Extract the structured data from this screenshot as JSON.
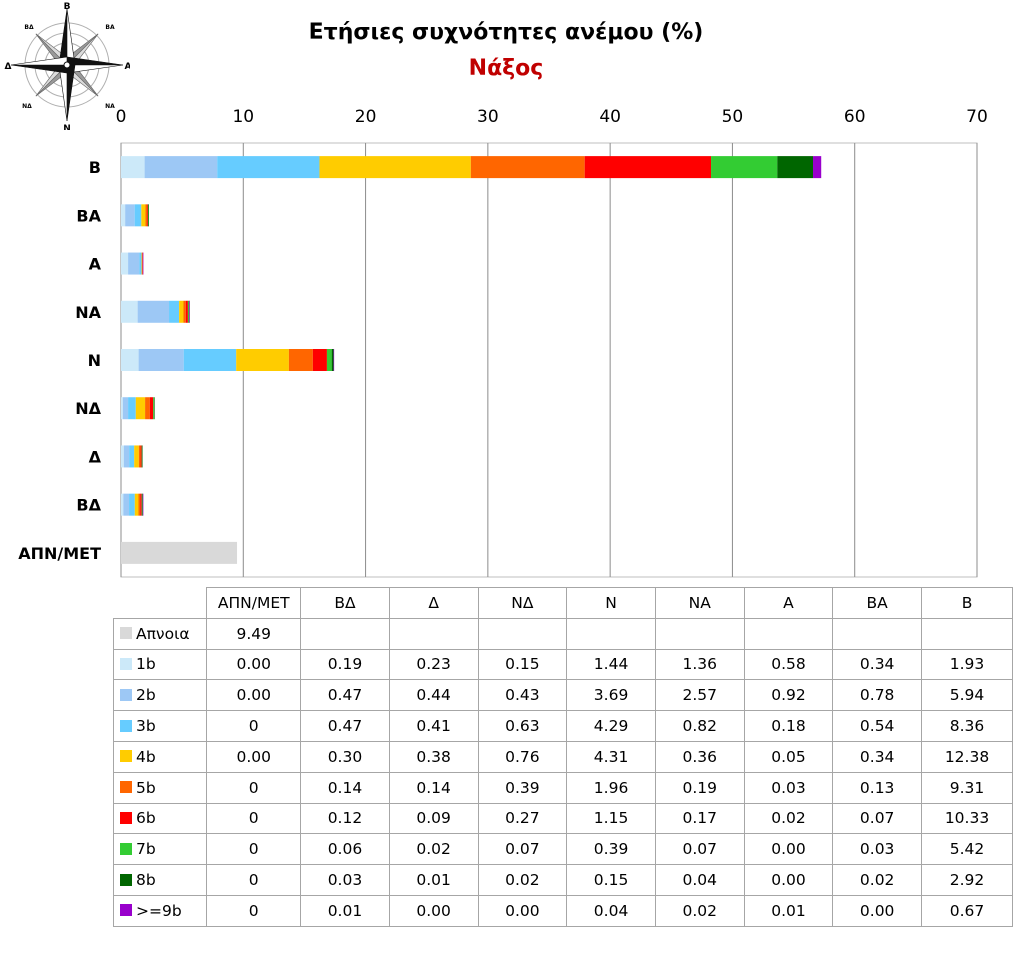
{
  "chart_data": {
    "type": "bar",
    "orientation": "horizontal",
    "stacked": true,
    "title": "Ετήσιες συχνότητες ανέμου (%)",
    "subtitle": "Νάξος",
    "categories": [
      "Β",
      "ΒΑ",
      "Α",
      "ΝΑ",
      "Ν",
      "ΝΔ",
      "Δ",
      "ΒΔ",
      "ΑΠΝ/ΜΕΤ"
    ],
    "table_columns": [
      "ΑΠΝ/ΜΕΤ",
      "ΒΔ",
      "Δ",
      "ΝΔ",
      "Ν",
      "ΝΑ",
      "Α",
      "ΒΑ",
      "Β"
    ],
    "xlim": [
      0,
      70
    ],
    "x_ticks": [
      "0",
      "10",
      "20",
      "30",
      "40",
      "50",
      "60",
      "70"
    ],
    "x_axis_position": "top",
    "grid": true,
    "series": [
      {
        "name": "Απνοια",
        "color": "#d9d9d9",
        "values": {
          "ΑΠΝ/ΜΕΤ": 9.49
        },
        "display": [
          "9.49",
          "",
          "",
          "",
          "",
          "",
          "",
          "",
          ""
        ]
      },
      {
        "name": "1b",
        "color": "#cce9f9",
        "values": {
          "ΑΠΝ/ΜΕΤ": 0,
          "ΒΔ": 0.19,
          "Δ": 0.23,
          "ΝΔ": 0.15,
          "Ν": 1.44,
          "ΝΑ": 1.36,
          "Α": 0.58,
          "ΒΑ": 0.34,
          "Β": 1.93
        },
        "display": [
          "0.00",
          "0.19",
          "0.23",
          "0.15",
          "1.44",
          "1.36",
          "0.58",
          "0.34",
          "1.93"
        ]
      },
      {
        "name": "2b",
        "color": "#9dc8f5",
        "values": {
          "ΑΠΝ/ΜΕΤ": 0,
          "ΒΔ": 0.47,
          "Δ": 0.44,
          "ΝΔ": 0.43,
          "Ν": 3.69,
          "ΝΑ": 2.57,
          "Α": 0.92,
          "ΒΑ": 0.78,
          "Β": 5.94
        },
        "display": [
          "0.00",
          "0.47",
          "0.44",
          "0.43",
          "3.69",
          "2.57",
          "0.92",
          "0.78",
          "5.94"
        ]
      },
      {
        "name": "3b",
        "color": "#66ccff",
        "values": {
          "ΑΠΝ/ΜΕΤ": 0,
          "ΒΔ": 0.47,
          "Δ": 0.41,
          "ΝΔ": 0.63,
          "Ν": 4.29,
          "ΝΑ": 0.82,
          "Α": 0.18,
          "ΒΑ": 0.54,
          "Β": 8.36
        },
        "display": [
          "0",
          "0.47",
          "0.41",
          "0.63",
          "4.29",
          "0.82",
          "0.18",
          "0.54",
          "8.36"
        ]
      },
      {
        "name": "4b",
        "color": "#ffcc00",
        "values": {
          "ΑΠΝ/ΜΕΤ": 0,
          "ΒΔ": 0.3,
          "Δ": 0.38,
          "ΝΔ": 0.76,
          "Ν": 4.31,
          "ΝΑ": 0.36,
          "Α": 0.05,
          "ΒΑ": 0.34,
          "Β": 12.38
        },
        "display": [
          "0.00",
          "0.30",
          "0.38",
          "0.76",
          "4.31",
          "0.36",
          "0.05",
          "0.34",
          "12.38"
        ]
      },
      {
        "name": "5b",
        "color": "#ff6600",
        "values": {
          "ΑΠΝ/ΜΕΤ": 0,
          "ΒΔ": 0.14,
          "Δ": 0.14,
          "ΝΔ": 0.39,
          "Ν": 1.96,
          "ΝΑ": 0.19,
          "Α": 0.03,
          "ΒΑ": 0.13,
          "Β": 9.31
        },
        "display": [
          "0",
          "0.14",
          "0.14",
          "0.39",
          "1.96",
          "0.19",
          "0.03",
          "0.13",
          "9.31"
        ]
      },
      {
        "name": "6b",
        "color": "#ff0000",
        "values": {
          "ΑΠΝ/ΜΕΤ": 0,
          "ΒΔ": 0.12,
          "Δ": 0.09,
          "ΝΔ": 0.27,
          "Ν": 1.15,
          "ΝΑ": 0.17,
          "Α": 0.02,
          "ΒΑ": 0.07,
          "Β": 10.33
        },
        "display": [
          "0",
          "0.12",
          "0.09",
          "0.27",
          "1.15",
          "0.17",
          "0.02",
          "0.07",
          "10.33"
        ]
      },
      {
        "name": "7b",
        "color": "#33cc33",
        "values": {
          "ΑΠΝ/ΜΕΤ": 0,
          "ΒΔ": 0.06,
          "Δ": 0.02,
          "ΝΔ": 0.07,
          "Ν": 0.39,
          "ΝΑ": 0.07,
          "Α": 0.0,
          "ΒΑ": 0.03,
          "Β": 5.42
        },
        "display": [
          "0",
          "0.06",
          "0.02",
          "0.07",
          "0.39",
          "0.07",
          "0.00",
          "0.03",
          "5.42"
        ]
      },
      {
        "name": "8b",
        "color": "#006600",
        "values": {
          "ΑΠΝ/ΜΕΤ": 0,
          "ΒΔ": 0.03,
          "Δ": 0.01,
          "ΝΔ": 0.02,
          "Ν": 0.15,
          "ΝΑ": 0.04,
          "Α": 0.0,
          "ΒΑ": 0.02,
          "Β": 2.92
        },
        "display": [
          "0",
          "0.03",
          "0.01",
          "0.02",
          "0.15",
          "0.04",
          "0.00",
          "0.02",
          "2.92"
        ]
      },
      {
        "name": ">=9b",
        "color": "#9900cc",
        "values": {
          "ΑΠΝ/ΜΕΤ": 0,
          "ΒΔ": 0.01,
          "Δ": 0.0,
          "ΝΔ": 0.0,
          "Ν": 0.04,
          "ΝΑ": 0.02,
          "Α": 0.01,
          "ΒΑ": 0.0,
          "Β": 0.67
        },
        "display": [
          "0",
          "0.01",
          "0.00",
          "0.00",
          "0.04",
          "0.02",
          "0.01",
          "0.00",
          "0.67"
        ]
      }
    ]
  },
  "compass": {
    "labels": {
      "n": "Β",
      "ne": "ΒΑ",
      "e": "Α",
      "se": "ΝΑ",
      "s": "Ν",
      "sw": "ΝΔ",
      "w": "Δ",
      "nw": "ΒΔ"
    },
    "icon": "compass-rose-icon"
  }
}
